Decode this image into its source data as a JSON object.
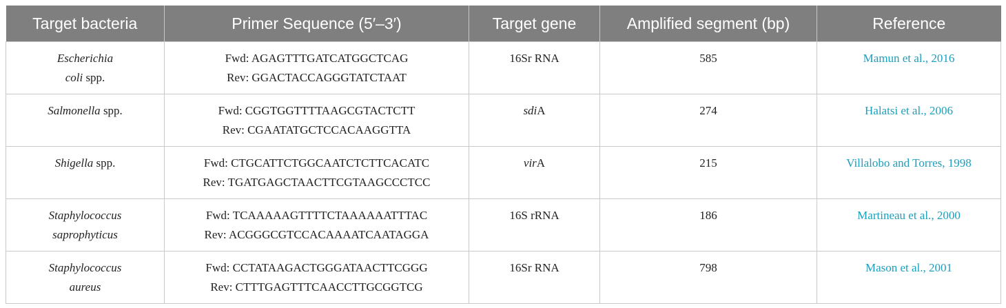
{
  "table": {
    "header": [
      "Target bacteria",
      "Primer Sequence (5′–3′)",
      "Target gene",
      "Amplified segment (bp)",
      "Reference"
    ],
    "rows": [
      {
        "bacteria": [
          [
            {
              "text": "Escherichia",
              "italic": true
            }
          ],
          [
            {
              "text": "coli",
              "italic": true
            },
            {
              "text": "spp.",
              "italic": false
            }
          ]
        ],
        "primers": [
          "Fwd: AGAGTTTGATCATGGCTCAG",
          "Rev: GGACTACCAGGGTATCTAAT"
        ],
        "gene": [
          {
            "text": "16Sr RNA",
            "italic": false
          }
        ],
        "segment": 585,
        "reference": "Mamun et al., 2016"
      },
      {
        "bacteria": [
          [
            {
              "text": "Salmonella",
              "italic": true
            },
            {
              "text": "spp.",
              "italic": false
            }
          ]
        ],
        "primers": [
          "Fwd: CGGTGGTTTTAAGCGTACTCTT",
          "Rev: CGAATATGCTCCACAAGGTTA"
        ],
        "gene": [
          {
            "text": "sdi",
            "italic": true
          },
          {
            "text": "A",
            "italic": false
          }
        ],
        "segment": 274,
        "reference": "Halatsi et al., 2006"
      },
      {
        "bacteria": [
          [
            {
              "text": "Shigella",
              "italic": true
            },
            {
              "text": "spp.",
              "italic": false
            }
          ]
        ],
        "primers": [
          "Fwd: CTGCATTCTGGCAATCTCTTCACATC",
          "Rev: TGATGAGCTAACTTCGTAAGCCCTCC"
        ],
        "gene": [
          {
            "text": "vir",
            "italic": true
          },
          {
            "text": "A",
            "italic": false
          }
        ],
        "segment": 215,
        "reference": "Villalobo and Torres, 1998"
      },
      {
        "bacteria": [
          [
            {
              "text": "Staphylococcus",
              "italic": true
            }
          ],
          [
            {
              "text": "saprophyticus",
              "italic": true
            }
          ]
        ],
        "primers": [
          "Fwd: TCAAAAAGTTTTCTAAAAAATTTAC",
          "Rev: ACGGGCGTCCACAAAATCAATAGGA"
        ],
        "gene": [
          {
            "text": "16S rRNA",
            "italic": false
          }
        ],
        "segment": 186,
        "reference": "Martineau et al., 2000"
      },
      {
        "bacteria": [
          [
            {
              "text": "Staphylococcus",
              "italic": true
            }
          ],
          [
            {
              "text": "aureus",
              "italic": true
            }
          ]
        ],
        "primers": [
          "Fwd: CCTATAAGACTGGGATAACTTCGGG",
          "Rev: CTTTGAGTTTCAACCTTGCGGTCG"
        ],
        "gene": [
          {
            "text": "16Sr RNA",
            "italic": false
          }
        ],
        "segment": 798,
        "reference": "Mason et al., 2001"
      }
    ]
  }
}
